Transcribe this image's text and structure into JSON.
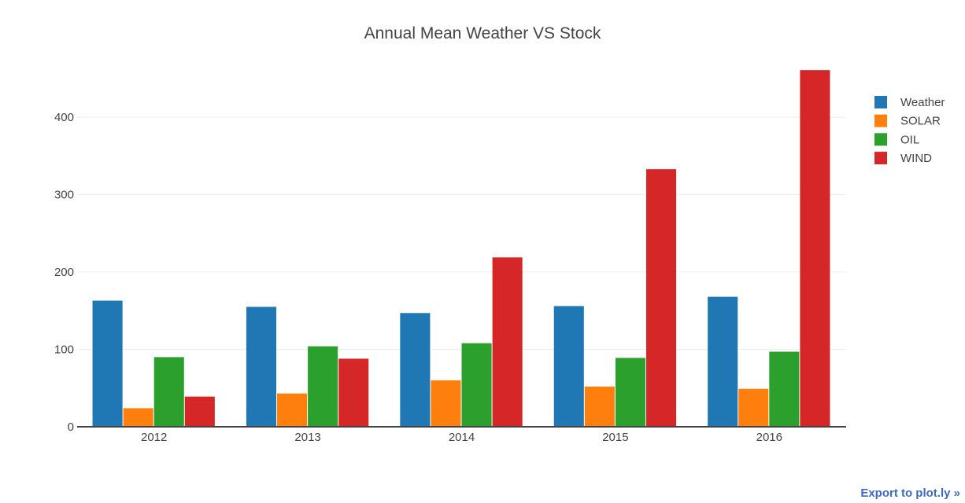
{
  "chart_data": {
    "type": "bar",
    "title": "Annual Mean Weather VS Stock",
    "xlabel": "",
    "ylabel": "",
    "categories": [
      "2012",
      "2013",
      "2014",
      "2015",
      "2016"
    ],
    "ylim": [
      0,
      450
    ],
    "yticks": [
      0,
      100,
      200,
      300,
      400
    ],
    "grid": true,
    "legend_position": "top-right",
    "series": [
      {
        "name": "Weather",
        "color": "#1f77b4",
        "values": [
          163,
          155,
          147,
          156,
          168
        ]
      },
      {
        "name": "SOLAR",
        "color": "#ff7f0e",
        "values": [
          24,
          43,
          60,
          52,
          49
        ]
      },
      {
        "name": "OIL",
        "color": "#2ca02c",
        "values": [
          90,
          104,
          108,
          89,
          97
        ]
      },
      {
        "name": "WIND",
        "color": "#d62728",
        "values": [
          39,
          88,
          219,
          333,
          461
        ]
      }
    ]
  },
  "footer": {
    "export_label": "Export to plot.ly »"
  }
}
